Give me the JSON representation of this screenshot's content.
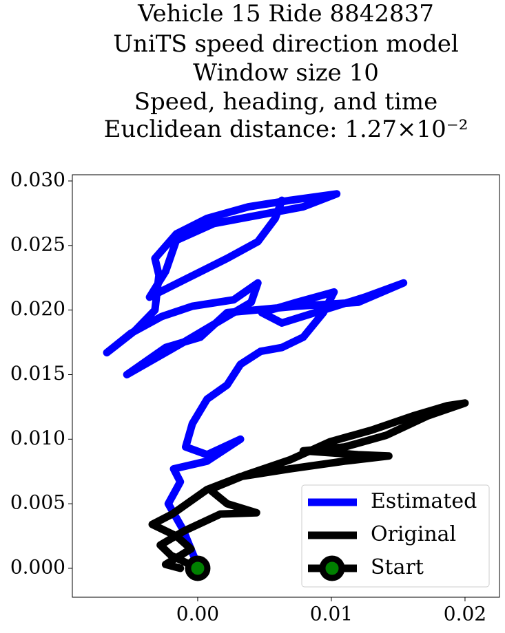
{
  "chart_data": {
    "type": "line",
    "title": [
      "Vehicle 15 Ride 8842837",
      "UniTS speed direction model",
      "Window size 10",
      "Speed, heading, and time",
      "Euclidean distance: 1.27×10⁻²"
    ],
    "xlim": [
      -0.00938,
      0.02258
    ],
    "ylim": [
      -0.00224,
      0.03048
    ],
    "xticks": [
      {
        "value": 0,
        "label": "0.00"
      },
      {
        "value": 0.01,
        "label": "0.01"
      },
      {
        "value": 0.02,
        "label": "0.02"
      }
    ],
    "yticks": [
      {
        "value": 0,
        "label": "0.000"
      },
      {
        "value": 0.005,
        "label": "0.005"
      },
      {
        "value": 0.01,
        "label": "0.010"
      },
      {
        "value": 0.015,
        "label": "0.015"
      },
      {
        "value": 0.02,
        "label": "0.020"
      },
      {
        "value": 0.025,
        "label": "0.025"
      },
      {
        "value": 0.03,
        "label": "0.030"
      }
    ],
    "grid": false,
    "legend": "lower right",
    "series": [
      {
        "name": "Estimated",
        "color": "#0000ff",
        "x": [
          0.0,
          -0.0011,
          -0.0022,
          -0.0013,
          -0.0018,
          0.0007,
          0.0032,
          0.0007,
          -0.0009,
          -0.0004,
          0.0007,
          0.0022,
          0.0032,
          0.0047,
          0.0063,
          0.0079,
          0.0094,
          0.0102,
          0.0074,
          0.0048,
          0.0063,
          0.0125,
          0.0154,
          0.012,
          0.0074,
          0.0022,
          0.0002,
          -0.0024,
          -0.0053,
          -0.0009,
          0.0022,
          0.004,
          0.0045,
          0.0027,
          -0.0004,
          -0.0027,
          -0.005,
          -0.0068,
          -0.0047,
          -0.0032,
          -0.0029,
          -0.0032,
          -0.0016,
          0.0007,
          0.0038,
          0.0069,
          0.0104,
          0.0079,
          0.0048,
          0.0012,
          -0.0016,
          -0.0024,
          -0.0036,
          -0.0009,
          0.0022,
          0.0045,
          0.0058,
          0.0063
        ],
        "values": [
          0.0002,
          0.003,
          0.005,
          0.0067,
          0.0077,
          0.0083,
          0.01,
          0.0088,
          0.0094,
          0.0112,
          0.0131,
          0.0142,
          0.0158,
          0.0168,
          0.0171,
          0.0179,
          0.0198,
          0.0214,
          0.0206,
          0.0198,
          0.019,
          0.021,
          0.0221,
          0.0206,
          0.0203,
          0.0198,
          0.0179,
          0.0171,
          0.015,
          0.0176,
          0.0195,
          0.0206,
          0.0221,
          0.0208,
          0.0203,
          0.0195,
          0.0182,
          0.0167,
          0.0184,
          0.02,
          0.0227,
          0.024,
          0.0259,
          0.0271,
          0.028,
          0.0285,
          0.029,
          0.028,
          0.0274,
          0.0267,
          0.0254,
          0.023,
          0.021,
          0.0224,
          0.024,
          0.0253,
          0.0271,
          0.0285
        ]
      },
      {
        "name": "Original",
        "color": "#000000",
        "x": [
          0.0,
          -0.002,
          -0.0028,
          -0.001,
          0.0017,
          0.0044,
          0.0022,
          0.0009,
          0.0035,
          0.0069,
          0.0099,
          0.013,
          0.0161,
          0.0187,
          0.02,
          0.0172,
          0.0141,
          0.011,
          0.0079,
          0.012,
          0.0143,
          0.011,
          0.0069,
          0.0032,
          0.0007,
          -0.0019,
          -0.0034,
          -0.0016,
          -0.0005,
          -0.0024,
          -0.0013
        ],
        "values": [
          0.0,
          0.001,
          0.0018,
          0.0029,
          0.0042,
          0.0043,
          0.005,
          0.0061,
          0.0072,
          0.0084,
          0.0098,
          0.0107,
          0.0118,
          0.0126,
          0.0128,
          0.0118,
          0.0103,
          0.0094,
          0.0091,
          0.0088,
          0.0087,
          0.0083,
          0.0077,
          0.0071,
          0.0061,
          0.0042,
          0.0034,
          0.0025,
          0.0015,
          0.0003,
          0.0
        ]
      }
    ],
    "start": {
      "name": "Start",
      "x": 0,
      "y": 0,
      "color": "#000000",
      "marker_color": "#008000"
    }
  }
}
